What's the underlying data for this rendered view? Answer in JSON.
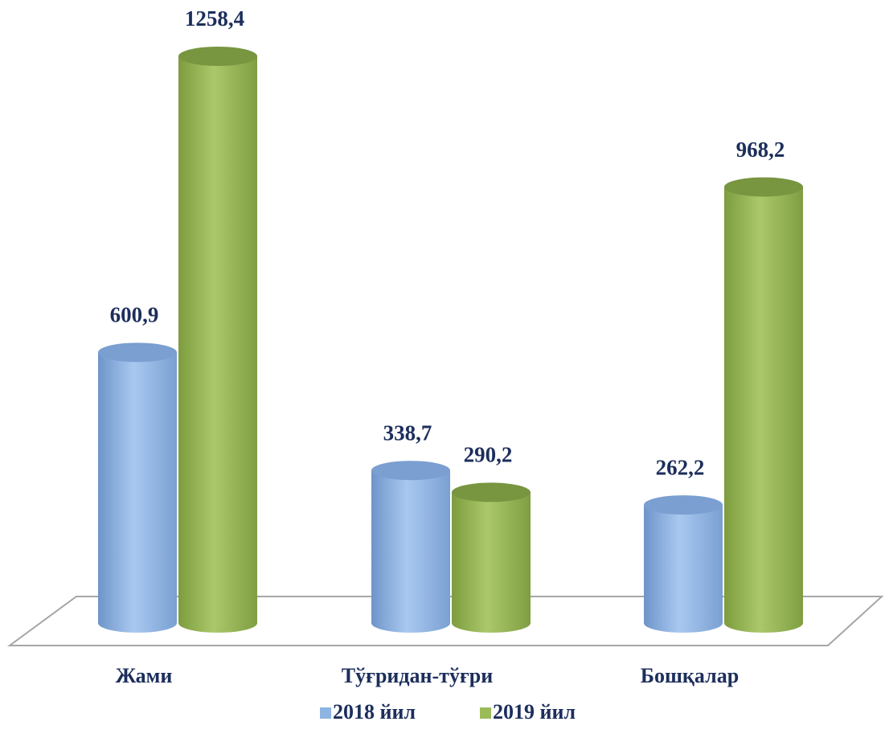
{
  "chart_data": {
    "type": "cylinder-bar",
    "categories": [
      "Жами",
      "Тўғридан-тўғри",
      "Бошқалар"
    ],
    "series": [
      {
        "name": "2018 йил",
        "color": "#8db4e2",
        "values": [
          600.9,
          338.7,
          262.2
        ],
        "value_labels": [
          "600,9",
          "338,7",
          "262,2"
        ]
      },
      {
        "name": "2019 йил",
        "color": "#9bbb59",
        "values": [
          1258.4,
          290.2,
          968.2
        ],
        "value_labels": [
          "1258,4",
          "290,2",
          "968,2"
        ]
      }
    ],
    "legend": "bottom"
  }
}
